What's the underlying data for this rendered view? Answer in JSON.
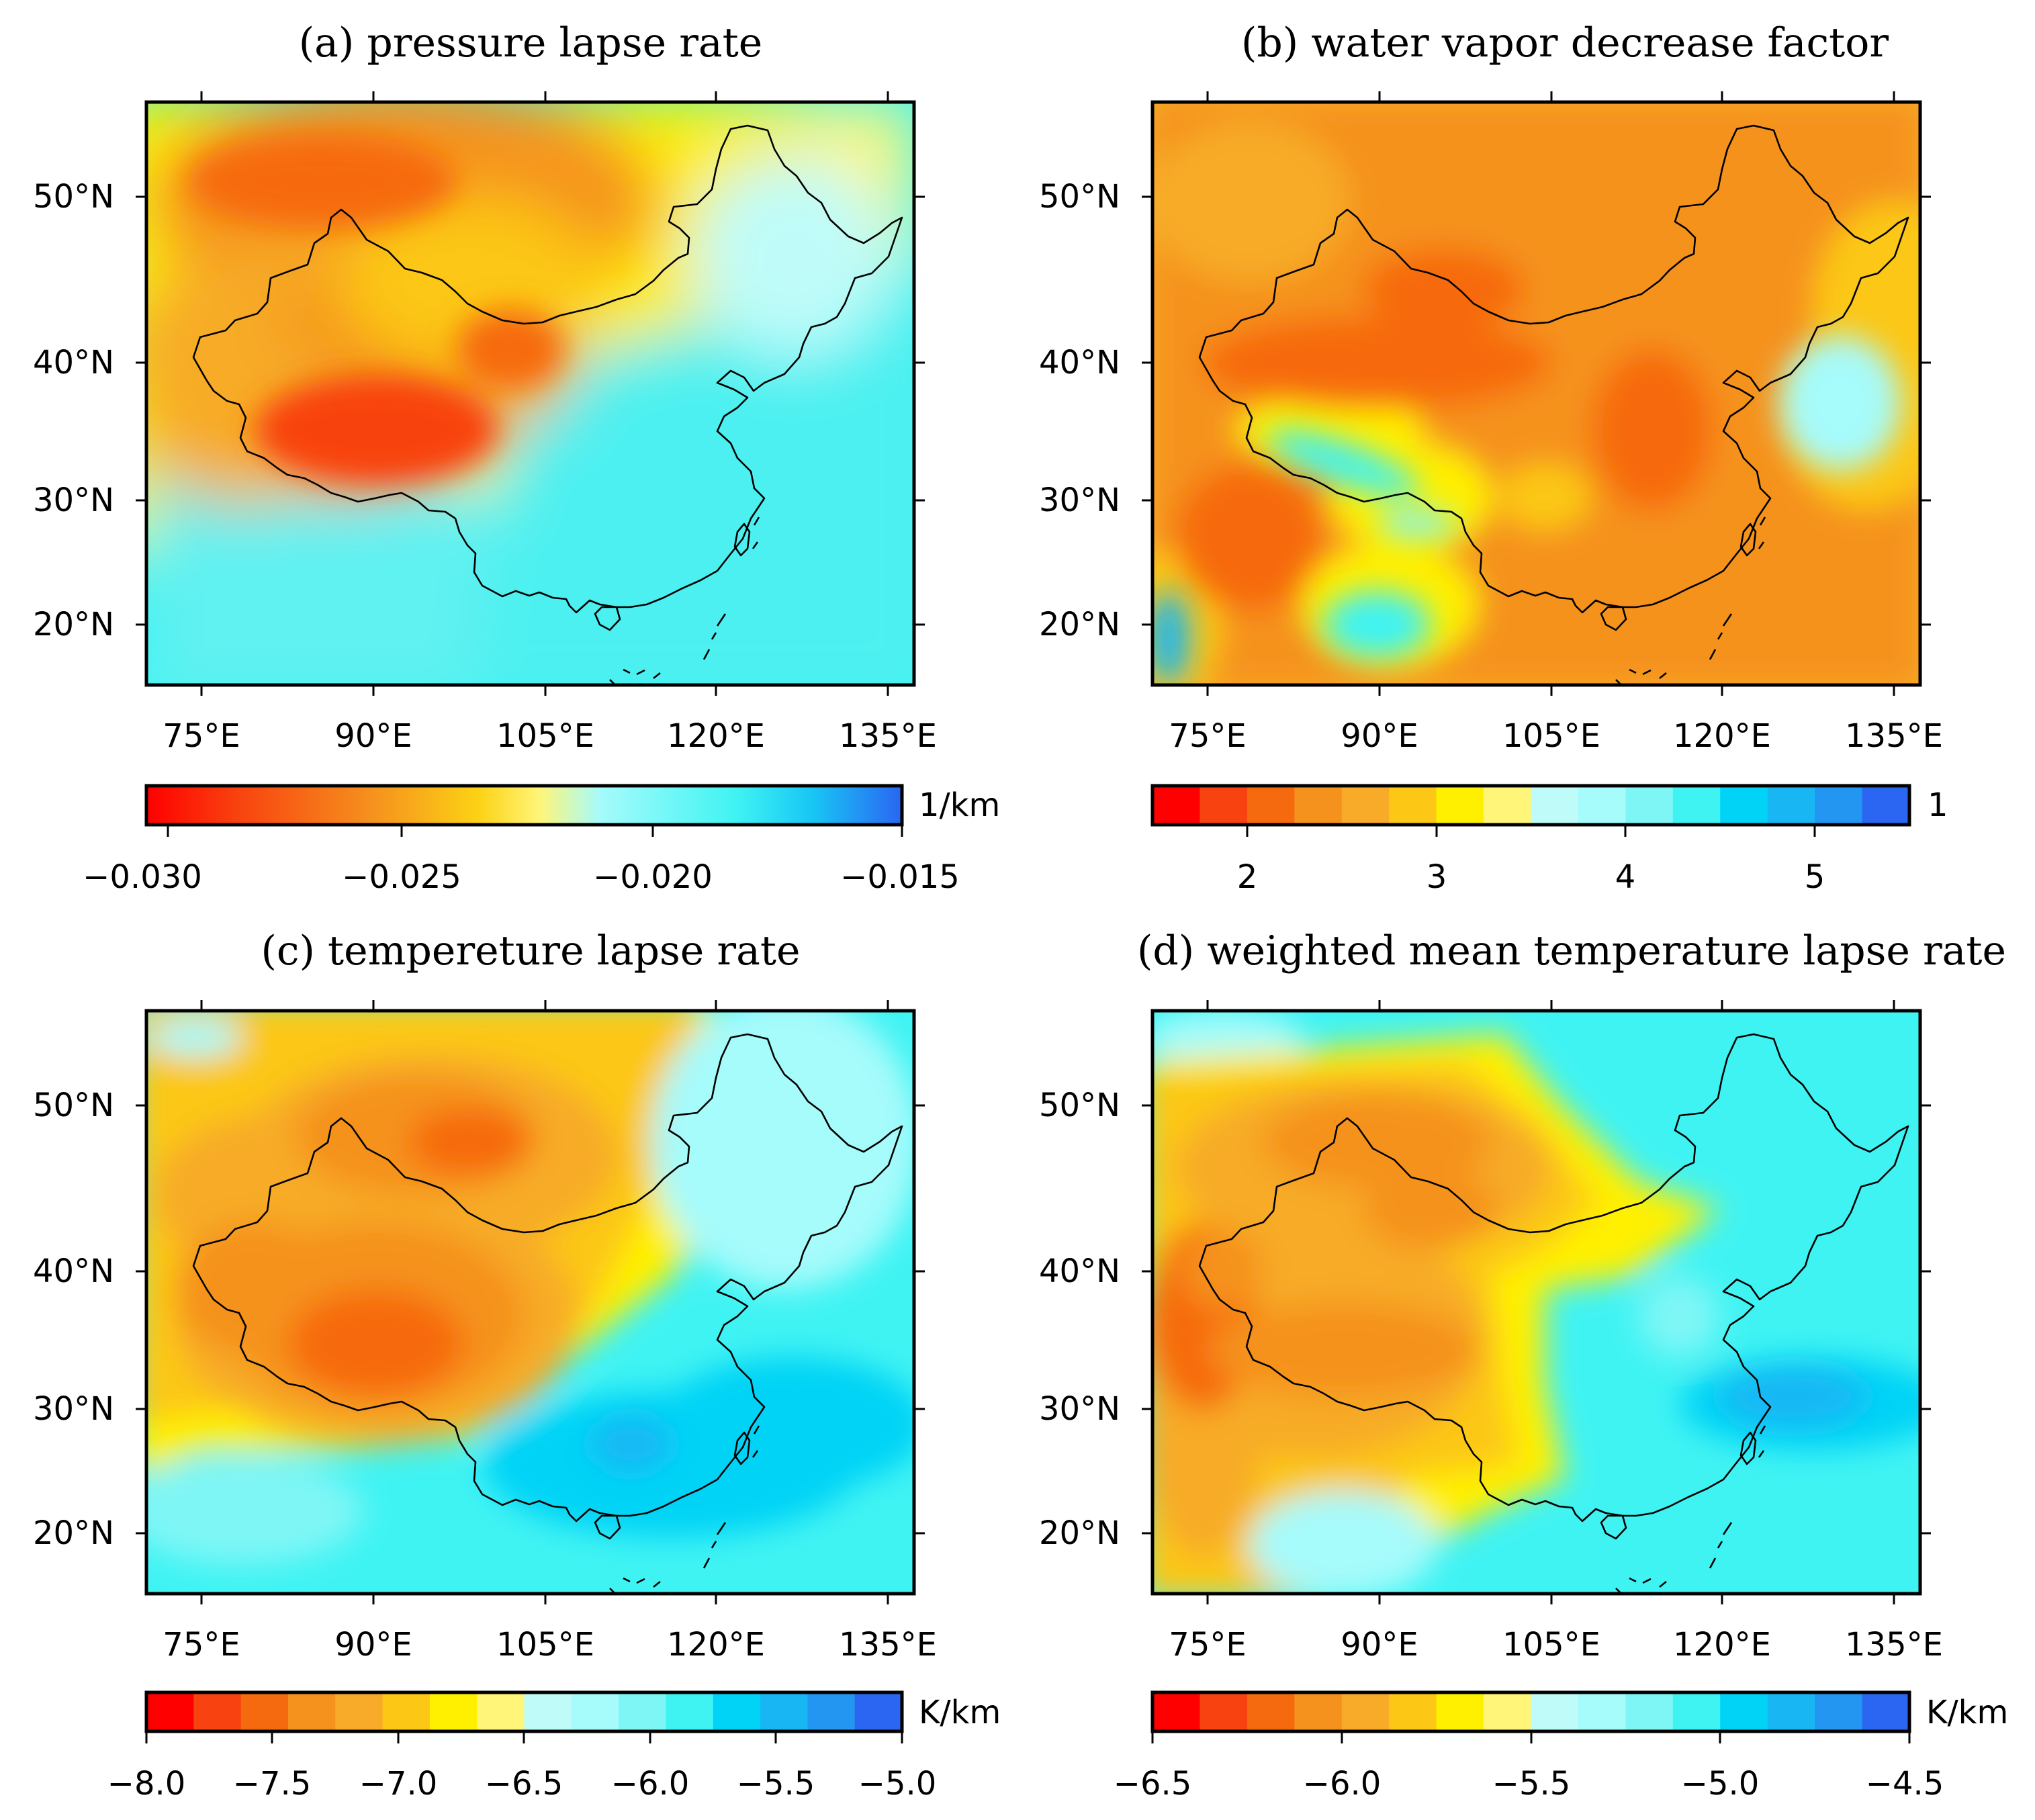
{
  "panels": [
    {
      "title": "(a) pressure lapse rate",
      "lat_labels": [
        "50°N",
        "40°N",
        "30°N",
        "20°N"
      ],
      "lon_labels": [
        "75°E",
        "90°E",
        "105°E",
        "120°E",
        "135°E"
      ],
      "colorbar": {
        "unit": "1/km",
        "tick_labels": [
          "−0.030",
          "−0.025",
          "−0.020",
          "−0.015"
        ],
        "range": [
          -0.03,
          -0.015
        ],
        "style": "continuous"
      }
    },
    {
      "title": "(b) water vapor decrease factor",
      "lat_labels": [
        "50°N",
        "40°N",
        "30°N",
        "20°N"
      ],
      "lon_labels": [
        "75°E",
        "90°E",
        "105°E",
        "120°E",
        "135°E"
      ],
      "colorbar": {
        "unit": "1",
        "tick_labels": [
          "2",
          "3",
          "4",
          "5"
        ],
        "range": [
          1.5,
          5.5
        ],
        "style": "discrete"
      }
    },
    {
      "title": "(c) tempereture lapse rate",
      "lat_labels": [
        "50°N",
        "40°N",
        "30°N",
        "20°N"
      ],
      "lon_labels": [
        "75°E",
        "90°E",
        "105°E",
        "120°E",
        "135°E"
      ],
      "colorbar": {
        "unit": "K/km",
        "tick_labels": [
          "−8.0",
          "−7.5",
          "−7.0",
          "−6.5",
          "−6.0",
          "−5.5",
          "−5.0"
        ],
        "range": [
          -8.0,
          -5.0
        ],
        "style": "discrete"
      }
    },
    {
      "title": "(d) weighted mean temperature lapse rate",
      "lat_labels": [
        "50°N",
        "40°N",
        "30°N",
        "20°N"
      ],
      "lon_labels": [
        "75°E",
        "90°E",
        "105°E",
        "120°E",
        "135°E"
      ],
      "colorbar": {
        "unit": "K/km",
        "tick_labels": [
          "−6.5",
          "−6.0",
          "−5.5",
          "−5.0",
          "−4.5"
        ],
        "range": [
          -6.5,
          -4.5
        ],
        "style": "discrete"
      }
    }
  ],
  "colors": {
    "scale": [
      "#ff0000",
      "#f8420f",
      "#f66a0f",
      "#f5921e",
      "#f7ab28",
      "#fcc715",
      "#fff000",
      "#fff578",
      "#bffcf9",
      "#a6fbfb",
      "#7ff6f6",
      "#40f3f3",
      "#00d3f6",
      "#18b7f4",
      "#2396f2",
      "#2a66f2"
    ],
    "border": "#000000"
  }
}
